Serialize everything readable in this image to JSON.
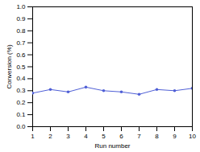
{
  "chart_data": {
    "type": "line",
    "xlabel": "Run number",
    "ylabel": "Conversion (%)",
    "x": [
      1,
      2,
      3,
      4,
      5,
      6,
      7,
      8,
      9,
      10
    ],
    "values": [
      0.28,
      0.31,
      0.29,
      0.33,
      0.3,
      0.29,
      0.27,
      0.31,
      0.3,
      0.32
    ],
    "color": "#4f5fd6",
    "marker": "circle",
    "line_style": "solid",
    "grid": false,
    "xlim": [
      1,
      10
    ],
    "xticks": [
      1,
      2,
      3,
      4,
      5,
      6,
      7,
      8,
      9,
      10
    ],
    "ylim": [
      0,
      1
    ],
    "yticks": [
      {
        "value": 0,
        "label": "0.0"
      },
      0.1,
      0.2,
      0.3,
      0.4,
      0.5,
      0.6,
      0.7,
      0.8,
      0.9,
      {
        "value": 1,
        "label": "1.0"
      }
    ]
  }
}
